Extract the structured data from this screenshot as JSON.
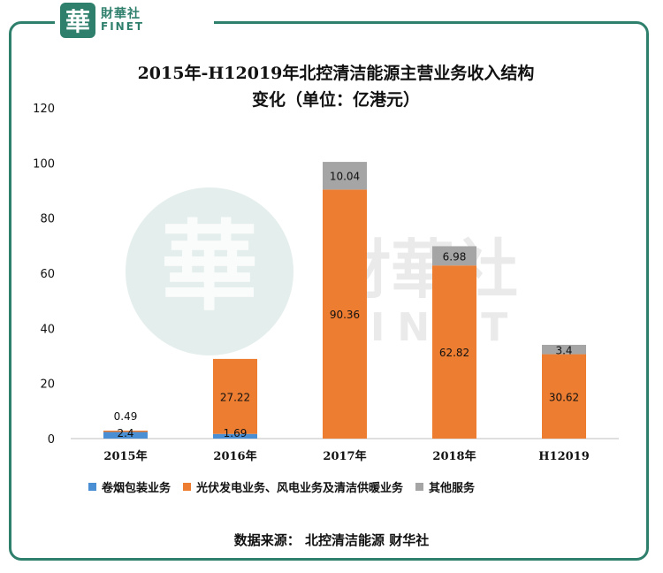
{
  "logo": {
    "glyph": "華",
    "cn": "財華社",
    "en": "FINET"
  },
  "watermark": {
    "glyph": "華",
    "cn": "財華社",
    "en": "FINET"
  },
  "title_line1": "2015年-H12019年北控清洁能源主营业务收入结构",
  "title_line2": "变化（单位：亿港元）",
  "source": "数据来源： 北控清洁能源   财华社",
  "colors": {
    "series1": "#4a8fd4",
    "series2": "#ed7d31",
    "series3": "#a5a5a5",
    "frame": "#2f7f6d"
  },
  "chart_data": {
    "type": "bar",
    "stacked": true,
    "categories": [
      "2015年",
      "2016年",
      "2017年",
      "2018年",
      "H12019"
    ],
    "series": [
      {
        "name": "卷烟包装业务",
        "values": [
          2.4,
          1.69,
          0,
          0,
          0
        ]
      },
      {
        "name": "光伏发电业务、风电业务及清洁供暖业务",
        "values": [
          0.49,
          27.22,
          90.36,
          62.82,
          30.62
        ]
      },
      {
        "name": "其他服务",
        "values": [
          0,
          0,
          10.04,
          6.98,
          3.4
        ]
      }
    ],
    "data_labels": [
      [
        "2.4",
        "0.49",
        ""
      ],
      [
        "1.69",
        "27.22",
        ""
      ],
      [
        "",
        "90.36",
        "10.04"
      ],
      [
        "",
        "62.82",
        "6.98"
      ],
      [
        "",
        "30.62",
        "3.4"
      ]
    ],
    "yticks": [
      0,
      20,
      40,
      60,
      80,
      100,
      120
    ],
    "ylim": [
      0,
      120
    ],
    "grid": false,
    "legend_position": "bottom"
  }
}
